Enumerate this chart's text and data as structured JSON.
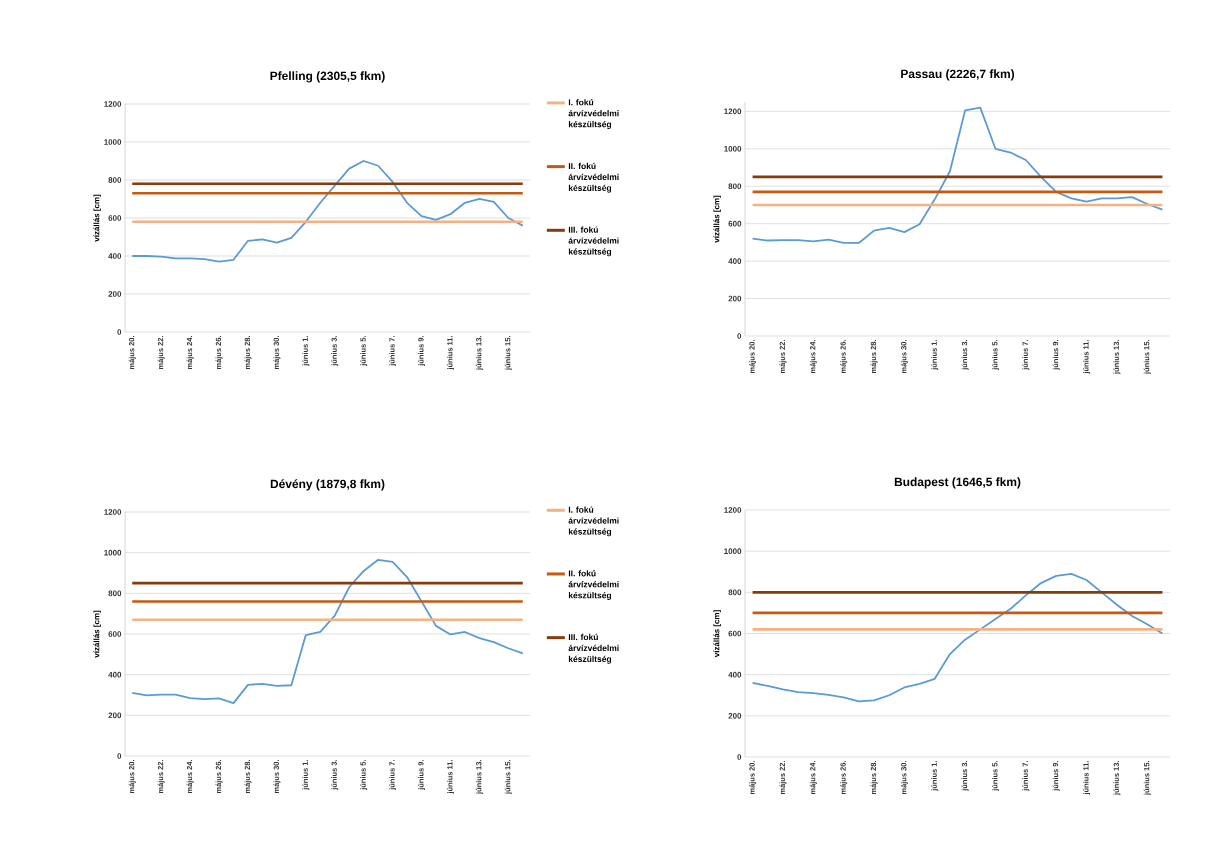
{
  "chart_data": [
    {
      "type": "line",
      "title": "Pfelling (2305,5 fkm)",
      "ylabel": "vízállás [cm]",
      "categories": [
        "május 20.",
        null,
        "május 22.",
        null,
        "május 24.",
        null,
        "május 26.",
        null,
        "május 28.",
        null,
        "május 30.",
        null,
        "június 1.",
        null,
        "június 3.",
        null,
        "június 5.",
        null,
        "június 7.",
        null,
        "június 9.",
        null,
        "június 11.",
        null,
        "június 13.",
        null,
        "június 15.",
        null
      ],
      "series": [
        {
          "color": "#5b9bd5",
          "values": [
            400,
            400,
            397,
            388,
            388,
            383,
            370,
            380,
            480,
            487,
            470,
            495,
            580,
            680,
            770,
            860,
            900,
            875,
            790,
            680,
            610,
            590,
            620,
            680,
            700,
            685,
            600,
            560
          ]
        }
      ],
      "ylim": [
        0,
        1200
      ],
      "yticks": [
        0,
        200,
        400,
        600,
        800,
        1000,
        1200
      ],
      "grid": "y",
      "legend": "right",
      "ref_lines": [
        {
          "axis": "y",
          "value": 580,
          "label": "I. fokú árvízvédelmi készültség",
          "color": "#f4b183"
        },
        {
          "axis": "y",
          "value": 730,
          "label": "II. fokú árvízvédelmi készültség",
          "color": "#c55a11"
        },
        {
          "axis": "y",
          "value": 780,
          "label": "III. fokú árvízvédelmi készültség",
          "color": "#843c0c"
        }
      ]
    },
    {
      "type": "line",
      "title": "Passau (2226,7 fkm)",
      "ylabel": "vízállás [cm]",
      "categories": [
        "május 20.",
        null,
        "május 22.",
        null,
        "május 24.",
        null,
        "május 26.",
        null,
        "május 28.",
        null,
        "május 30.",
        null,
        "június 1.",
        null,
        "június 3.",
        null,
        "június 5.",
        null,
        "június 7.",
        null,
        "június 9.",
        null,
        "június 11.",
        null,
        "június 13.",
        null,
        "június 15.",
        null
      ],
      "series": [
        {
          "color": "#5b9bd5",
          "values": [
            520,
            510,
            512,
            512,
            505,
            515,
            497,
            497,
            563,
            578,
            555,
            597,
            730,
            880,
            1205,
            1220,
            1000,
            980,
            940,
            850,
            770,
            735,
            718,
            735,
            735,
            742,
            705,
            675
          ]
        }
      ],
      "ylim": [
        0,
        1250
      ],
      "yticks": [
        0,
        200,
        400,
        600,
        800,
        1000,
        1200
      ],
      "grid": "y",
      "ref_lines": [
        {
          "axis": "y",
          "value": 700,
          "color": "#f4b183"
        },
        {
          "axis": "y",
          "value": 770,
          "color": "#c55a11"
        },
        {
          "axis": "y",
          "value": 850,
          "color": "#843c0c"
        }
      ]
    },
    {
      "type": "line",
      "title": "Dévény (1879,8 fkm)",
      "ylabel": "vízállás [cm]",
      "categories": [
        "május 20.",
        null,
        "május 22.",
        null,
        "május 24.",
        null,
        "május 26.",
        null,
        "május 28.",
        null,
        "május 30.",
        null,
        "június 1.",
        null,
        "június 3.",
        null,
        "június 5.",
        null,
        "június 7.",
        null,
        "június 9.",
        null,
        "június 11.",
        null,
        "június 13.",
        null,
        "június 15.",
        null
      ],
      "series": [
        {
          "color": "#5b9bd5",
          "values": [
            310,
            298,
            302,
            302,
            285,
            280,
            283,
            260,
            350,
            355,
            345,
            348,
            595,
            610,
            690,
            830,
            910,
            965,
            955,
            880,
            760,
            640,
            598,
            610,
            580,
            560,
            530,
            505
          ]
        }
      ],
      "ylim": [
        0,
        1200
      ],
      "yticks": [
        0,
        200,
        400,
        600,
        800,
        1000,
        1200
      ],
      "grid": "y",
      "legend": "right",
      "ref_lines": [
        {
          "axis": "y",
          "value": 670,
          "label": "I. fokú árvízvédelmi készültség",
          "color": "#f4b183"
        },
        {
          "axis": "y",
          "value": 760,
          "label": "II. fokú árvízvédelmi készültség",
          "color": "#c55a11"
        },
        {
          "axis": "y",
          "value": 850,
          "label": "III. fokú árvízvédelmi készültség",
          "color": "#843c0c"
        }
      ]
    },
    {
      "type": "line",
      "title": "Budapest (1646,5 fkm)",
      "ylabel": "vízállás [cm]",
      "categories": [
        "május 20.",
        null,
        "május 22.",
        null,
        "május 24.",
        null,
        "május 26.",
        null,
        "május 28.",
        null,
        "május 30.",
        null,
        "június 1.",
        null,
        "június 3.",
        null,
        "június 5.",
        null,
        "június 7.",
        null,
        "június 9.",
        null,
        "június 11.",
        null,
        "június 13.",
        null,
        "június 15.",
        null
      ],
      "series": [
        {
          "color": "#5b9bd5",
          "values": [
            360,
            345,
            328,
            315,
            310,
            302,
            290,
            270,
            275,
            300,
            338,
            355,
            380,
            500,
            570,
            620,
            670,
            720,
            785,
            845,
            880,
            890,
            860,
            800,
            740,
            685,
            645,
            600
          ]
        }
      ],
      "ylim": [
        0,
        1200
      ],
      "yticks": [
        0,
        200,
        400,
        600,
        800,
        1000,
        1200
      ],
      "grid": "y",
      "ref_lines": [
        {
          "axis": "y",
          "value": 620,
          "color": "#f4b183"
        },
        {
          "axis": "y",
          "value": 700,
          "color": "#c55a11"
        },
        {
          "axis": "y",
          "value": 800,
          "color": "#843c0c"
        }
      ]
    }
  ]
}
